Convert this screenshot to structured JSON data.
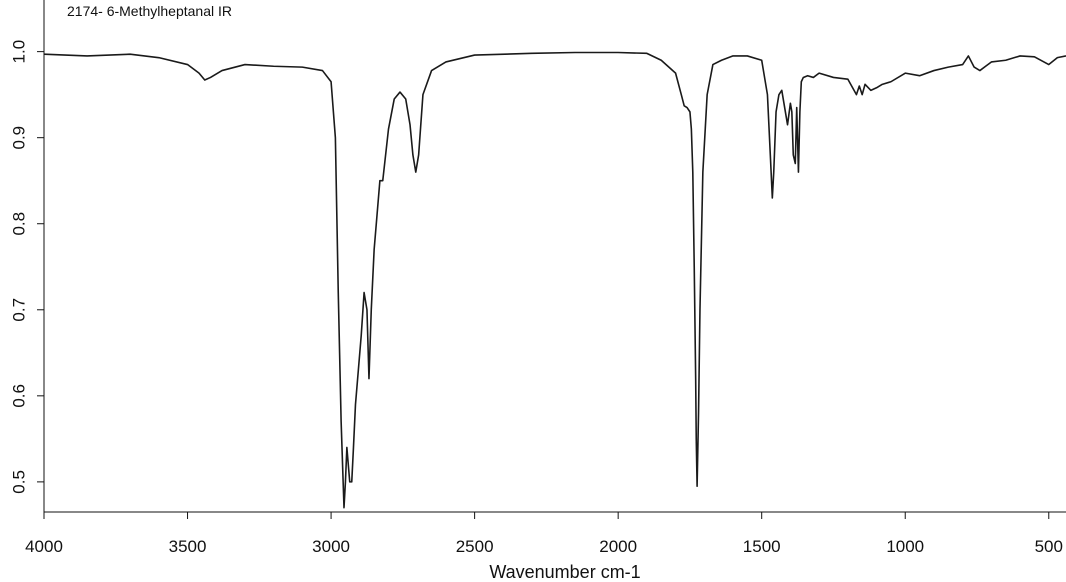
{
  "chart_data": {
    "type": "line",
    "title": "2174- 6-Methylheptanal IR",
    "xlabel": "Wavenumber cm-1",
    "ylabel": "",
    "xlim": [
      4000,
      440
    ],
    "ylim": [
      0.465,
      1.06
    ],
    "x_reversed": true,
    "grid": false,
    "legend": "none",
    "line_color": "#1a1a1a",
    "x_ticks": [
      {
        "value": 4000,
        "label": "4000"
      },
      {
        "value": 3500,
        "label": "3500"
      },
      {
        "value": 3000,
        "label": "3000"
      },
      {
        "value": 2500,
        "label": "2500"
      },
      {
        "value": 2000,
        "label": "2000"
      },
      {
        "value": 1500,
        "label": "1500"
      },
      {
        "value": 1000,
        "label": "1000"
      },
      {
        "value": 500,
        "label": "500"
      }
    ],
    "y_ticks": [
      {
        "value": 0.5,
        "label": "0.5"
      },
      {
        "value": 0.6,
        "label": "0.6"
      },
      {
        "value": 0.7,
        "label": "0.7"
      },
      {
        "value": 0.8,
        "label": "0.8"
      },
      {
        "value": 0.9,
        "label": "0.9"
      },
      {
        "value": 1.0,
        "label": "1.0"
      }
    ],
    "series": [
      {
        "x": [
          4000,
          3850,
          3700,
          3600,
          3500,
          3460,
          3440,
          3420,
          3380,
          3300,
          3200,
          3100,
          3030,
          3000,
          2985,
          2975,
          2965,
          2960,
          2955,
          2950,
          2945,
          2940,
          2935,
          2928,
          2922,
          2915,
          2905,
          2895,
          2885,
          2875,
          2868,
          2860,
          2850,
          2840,
          2830,
          2820,
          2800,
          2780,
          2760,
          2740,
          2725,
          2715,
          2705,
          2695,
          2680,
          2650,
          2600,
          2500,
          2300,
          2150,
          2000,
          1900,
          1850,
          1800,
          1780,
          1770,
          1760,
          1750,
          1745,
          1740,
          1735,
          1730,
          1728,
          1725,
          1720,
          1715,
          1705,
          1690,
          1670,
          1640,
          1600,
          1550,
          1500,
          1480,
          1470,
          1463,
          1458,
          1450,
          1440,
          1430,
          1420,
          1410,
          1400,
          1395,
          1390,
          1383,
          1378,
          1372,
          1367,
          1362,
          1355,
          1340,
          1320,
          1300,
          1250,
          1200,
          1170,
          1160,
          1150,
          1140,
          1120,
          1100,
          1080,
          1050,
          1000,
          950,
          900,
          850,
          800,
          780,
          760,
          740,
          720,
          700,
          650,
          600,
          550,
          500,
          470,
          440
        ],
        "y": [
          0.997,
          0.995,
          0.997,
          0.993,
          0.985,
          0.975,
          0.967,
          0.97,
          0.978,
          0.985,
          0.983,
          0.982,
          0.978,
          0.965,
          0.9,
          0.72,
          0.57,
          0.52,
          0.47,
          0.5,
          0.54,
          0.52,
          0.5,
          0.5,
          0.54,
          0.59,
          0.63,
          0.67,
          0.72,
          0.7,
          0.62,
          0.7,
          0.77,
          0.81,
          0.85,
          0.85,
          0.91,
          0.945,
          0.953,
          0.945,
          0.915,
          0.88,
          0.86,
          0.88,
          0.95,
          0.978,
          0.988,
          0.996,
          0.998,
          0.999,
          0.999,
          0.998,
          0.99,
          0.975,
          0.95,
          0.937,
          0.935,
          0.93,
          0.91,
          0.86,
          0.75,
          0.62,
          0.55,
          0.495,
          0.58,
          0.7,
          0.86,
          0.95,
          0.985,
          0.99,
          0.995,
          0.995,
          0.99,
          0.95,
          0.88,
          0.83,
          0.86,
          0.93,
          0.95,
          0.955,
          0.935,
          0.915,
          0.94,
          0.93,
          0.88,
          0.87,
          0.935,
          0.86,
          0.93,
          0.965,
          0.97,
          0.972,
          0.97,
          0.975,
          0.97,
          0.968,
          0.95,
          0.96,
          0.95,
          0.962,
          0.955,
          0.958,
          0.962,
          0.965,
          0.975,
          0.972,
          0.978,
          0.982,
          0.985,
          0.995,
          0.982,
          0.978,
          0.983,
          0.988,
          0.99,
          0.995,
          0.994,
          0.985,
          0.993,
          0.995
        ]
      }
    ]
  }
}
